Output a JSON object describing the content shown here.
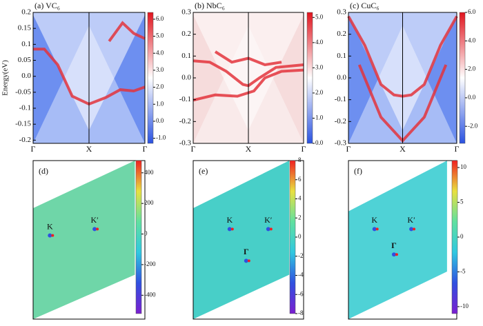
{
  "chart_data": [
    {
      "type": "heatmap",
      "title": "(a) VC₆",
      "ylabel": "Energy(eV)",
      "categories": [
        "Γ",
        "X",
        "Γ"
      ],
      "ylim": [
        -0.21,
        0.2
      ],
      "yticks": [
        0.2,
        0.15,
        0.1,
        0.05,
        {
          "value": 0,
          "label": "0.0"
        },
        -0.05,
        -0.1,
        -0.15,
        -0.2
      ],
      "clim": [
        -1.3,
        6.4
      ],
      "cticks": [
        {
          "value": 6,
          "label": "6.0"
        },
        {
          "value": 5,
          "label": "5.0"
        },
        {
          "value": 4,
          "label": "4.0"
        },
        {
          "value": 3,
          "label": "3.0"
        },
        {
          "value": 2,
          "label": "2.0"
        },
        {
          "value": 1,
          "label": "1.0"
        },
        {
          "value": 0,
          "label": "0.0"
        },
        {
          "value": -1,
          "label": "-1.0"
        }
      ],
      "colormap": [
        "#2a52e0",
        "#ffffff",
        "#e0141e"
      ]
    },
    {
      "type": "heatmap",
      "title": "(b) NbC₆",
      "categories": [
        "Γ",
        "X",
        "Γ"
      ],
      "ylim": [
        -0.3,
        0.3
      ],
      "yticks": [
        0.3,
        0.2,
        0.1,
        {
          "value": 0,
          "label": "0.0"
        },
        -0.1,
        -0.2,
        -0.3
      ],
      "clim": [
        0,
        5.2
      ],
      "cticks": [
        {
          "value": 5,
          "label": "5.0"
        },
        {
          "value": 4,
          "label": "4.0"
        },
        {
          "value": 3,
          "label": "3.0"
        },
        {
          "value": 2,
          "label": "2.0"
        },
        {
          "value": 1,
          "label": "1.0"
        },
        {
          "value": 0,
          "label": "0.0"
        }
      ],
      "colormap": [
        "#2a52e0",
        "#ffffff",
        "#e0141e"
      ]
    },
    {
      "type": "heatmap",
      "title": "(c) CuC₆",
      "categories": [
        "Γ",
        "X",
        "Γ"
      ],
      "ylim": [
        -0.3,
        0.3
      ],
      "yticks": [
        0.3,
        0.2,
        0.1,
        {
          "value": 0,
          "label": "0.0"
        },
        -0.1,
        -0.2,
        -0.3
      ],
      "clim": [
        -3.2,
        6
      ],
      "cticks": [
        {
          "value": 6,
          "label": "6.0"
        },
        {
          "value": 4,
          "label": "4.0"
        },
        {
          "value": 2,
          "label": "2.0"
        },
        {
          "value": 0,
          "label": "0.0"
        },
        {
          "value": -2,
          "label": "-2.0"
        }
      ],
      "colormap": [
        "#2a52e0",
        "#ffffff",
        "#e0141e"
      ]
    },
    {
      "type": "heatmap",
      "title": "(d)",
      "annotations": [
        "K",
        "K′"
      ],
      "clim": [
        -520,
        480
      ],
      "cticks": [
        400,
        200,
        0,
        -200,
        -400
      ],
      "colormap": [
        "#7a1fd0",
        "#3050e0",
        "#30c8e0",
        "#60e0a0",
        "#e8e040",
        "#f02020"
      ]
    },
    {
      "type": "heatmap",
      "title": "(e)",
      "annotations": [
        "K",
        "K′",
        "Γ"
      ],
      "clim": [
        -8,
        8
      ],
      "cticks": [
        8,
        6,
        4,
        2,
        0,
        -2,
        -4,
        -6,
        -8
      ],
      "colormap": [
        "#7a1fd0",
        "#3050e0",
        "#30c8e0",
        "#60e0a0",
        "#e8e040",
        "#f02020"
      ]
    },
    {
      "type": "heatmap",
      "title": "(f)",
      "annotations": [
        "K",
        "K′",
        "Γ"
      ],
      "clim": [
        -11,
        11
      ],
      "cticks": [
        10,
        5,
        0,
        -5,
        -10
      ],
      "colormap": [
        "#7a1fd0",
        "#3050e0",
        "#30c8e0",
        "#60e0a0",
        "#e8e040",
        "#f02020"
      ]
    }
  ]
}
